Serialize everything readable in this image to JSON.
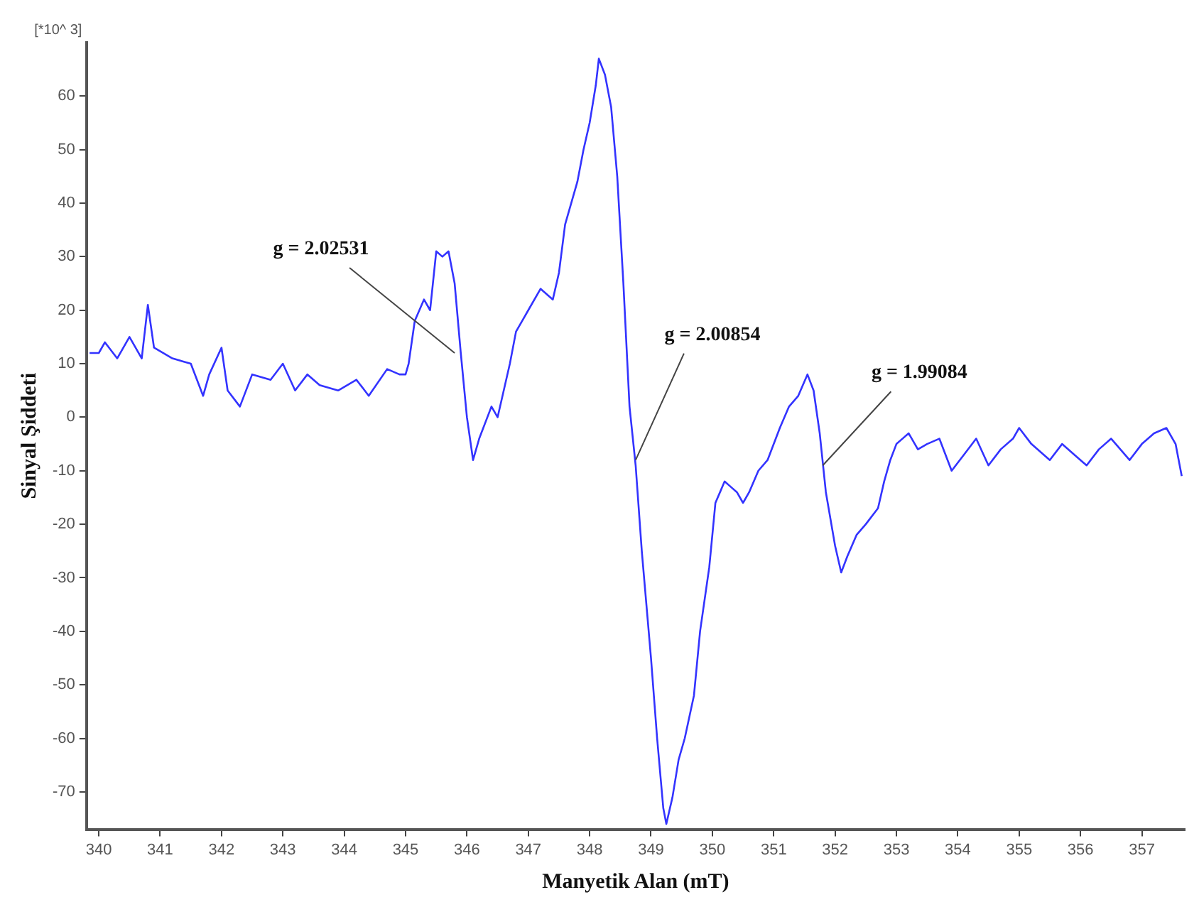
{
  "chart_data": {
    "type": "line",
    "xlabel": "Manyetik Alan (mT)",
    "ylabel": "Sinyal Şiddeti",
    "xlim": [
      339.8,
      357.7
    ],
    "xticks": [
      340,
      341,
      342,
      343,
      344,
      345,
      346,
      347,
      348,
      349,
      350,
      351,
      352,
      353,
      354,
      355,
      356,
      357
    ],
    "ylim": [
      -77,
      70
    ],
    "yticks": [
      -70,
      -60,
      -50,
      -40,
      -30,
      -20,
      -10,
      0,
      10,
      20,
      30,
      40,
      50,
      60
    ],
    "grid": false,
    "legend": false,
    "marker": "none",
    "line_style": "solid",
    "annotations": [
      "[*10^ 3]",
      {
        "text": "g = 2.02531",
        "x": 345.8,
        "y": 12
      },
      {
        "text": "g = 2.00854",
        "x": 348.75,
        "y": -8
      },
      {
        "text": "g = 1.99084",
        "x": 351.8,
        "y": -9
      }
    ],
    "series": [
      {
        "color": "#3333ff",
        "x": [
          339.85,
          340,
          340.1,
          340.3,
          340.5,
          340.7,
          340.8,
          340.9,
          341.2,
          341.5,
          341.7,
          341.8,
          342,
          342.1,
          342.3,
          342.5,
          342.8,
          343,
          343.2,
          343.4,
          343.6,
          343.9,
          344.2,
          344.4,
          344.7,
          344.9,
          345,
          345.05,
          345.15,
          345.3,
          345.4,
          345.5,
          345.6,
          345.7,
          345.8,
          345.9,
          346,
          346.1,
          346.2,
          346.4,
          346.5,
          346.6,
          346.7,
          346.8,
          346.9,
          347,
          347.2,
          347.4,
          347.5,
          347.6,
          347.8,
          347.9,
          348,
          348.1,
          348.15,
          348.25,
          348.35,
          348.45,
          348.55,
          348.65,
          348.75,
          348.85,
          349,
          349.1,
          349.2,
          349.25,
          349.35,
          349.45,
          349.55,
          349.7,
          349.8,
          349.95,
          350.05,
          350.2,
          350.3,
          350.4,
          350.5,
          350.6,
          350.75,
          350.9,
          351.1,
          351.25,
          351.4,
          351.55,
          351.65,
          351.75,
          351.85,
          352,
          352.1,
          352.2,
          352.35,
          352.5,
          352.7,
          352.8,
          352.9,
          353,
          353.2,
          353.35,
          353.5,
          353.7,
          353.9,
          354.1,
          354.3,
          354.5,
          354.7,
          354.9,
          355,
          355.2,
          355.5,
          355.7,
          355.9,
          356.1,
          356.3,
          356.5,
          356.8,
          357,
          357.2,
          357.4,
          357.55,
          357.65
        ],
        "values": [
          12,
          12,
          14,
          11,
          15,
          11,
          21,
          13,
          11,
          10,
          4,
          8,
          13,
          5,
          2,
          8,
          7,
          10,
          5,
          8,
          6,
          5,
          7,
          4,
          9,
          8,
          8,
          10,
          18,
          22,
          20,
          31,
          30,
          31,
          25,
          12,
          0,
          -8,
          -4,
          2,
          0,
          5,
          10,
          16,
          18,
          20,
          24,
          22,
          27,
          36,
          44,
          50,
          55,
          62,
          67,
          64,
          58,
          45,
          25,
          2,
          -9,
          -25,
          -45,
          -60,
          -73,
          -76,
          -71,
          -64,
          -60,
          -52,
          -40,
          -28,
          -16,
          -12,
          -13,
          -14,
          -16,
          -14,
          -10,
          -8,
          -2,
          2,
          4,
          8,
          5,
          -3,
          -14,
          -24,
          -29,
          -26,
          -22,
          -20,
          -17,
          -12,
          -8,
          -5,
          -3,
          -6,
          -5,
          -4,
          -10,
          -7,
          -4,
          -9,
          -6,
          -4,
          -2,
          -5,
          -8,
          -5,
          -7,
          -9,
          -6,
          -4,
          -8,
          -5,
          -3,
          -2,
          -5,
          -11
        ]
      }
    ]
  }
}
